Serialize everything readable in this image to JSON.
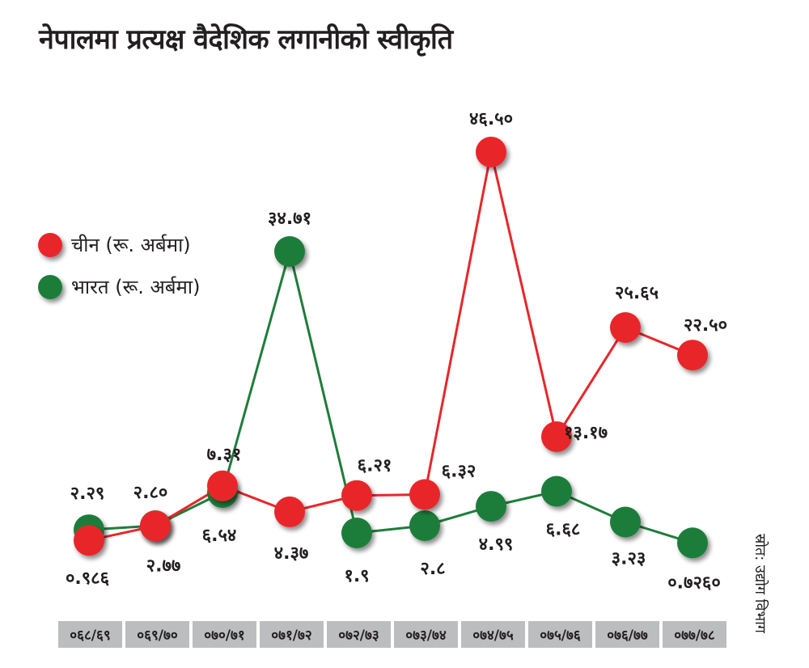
{
  "chart_data": {
    "type": "line",
    "title": "नेपालमा प्रत्यक्ष वैदेशिक लगानीको स्वीकृति",
    "categories": [
      "०६८/६९",
      "०६९/७०",
      "०७०/७१",
      "०७१/७२",
      "०७२/७३",
      "०७३/७४",
      "०७४/७५",
      "०७५/७६",
      "०७६/७७",
      "०७७/७८"
    ],
    "series": [
      {
        "name": "चीन (रू. अर्बमा)",
        "color": "#e8262a",
        "values": [
          0.986,
          2.77,
          7.31,
          4.37,
          6.21,
          6.32,
          46.5,
          13.17,
          25.65,
          22.5
        ],
        "labels": [
          "०.९८६",
          "२.७७",
          "७.३१",
          "४.३७",
          "६.२१",
          "६.३२",
          "४६.५०",
          "१३.१७",
          "२५.६५",
          "२२.५०"
        ]
      },
      {
        "name": "भारत (रू. अर्बमा)",
        "color": "#1e7d3a",
        "values": [
          2.29,
          2.8,
          6.54,
          34.71,
          1.9,
          2.8,
          4.99,
          6.68,
          3.23,
          0.726
        ],
        "labels": [
          "२.२९",
          "२.८०",
          "६.५४",
          "३४.७१",
          "१.९",
          "२.८",
          "४.९९",
          "६.६८",
          "३.२३",
          "०.७२६०"
        ]
      }
    ],
    "legend_position": "left",
    "grid": false,
    "source": "स्रोत: उद्योग विभाग"
  }
}
